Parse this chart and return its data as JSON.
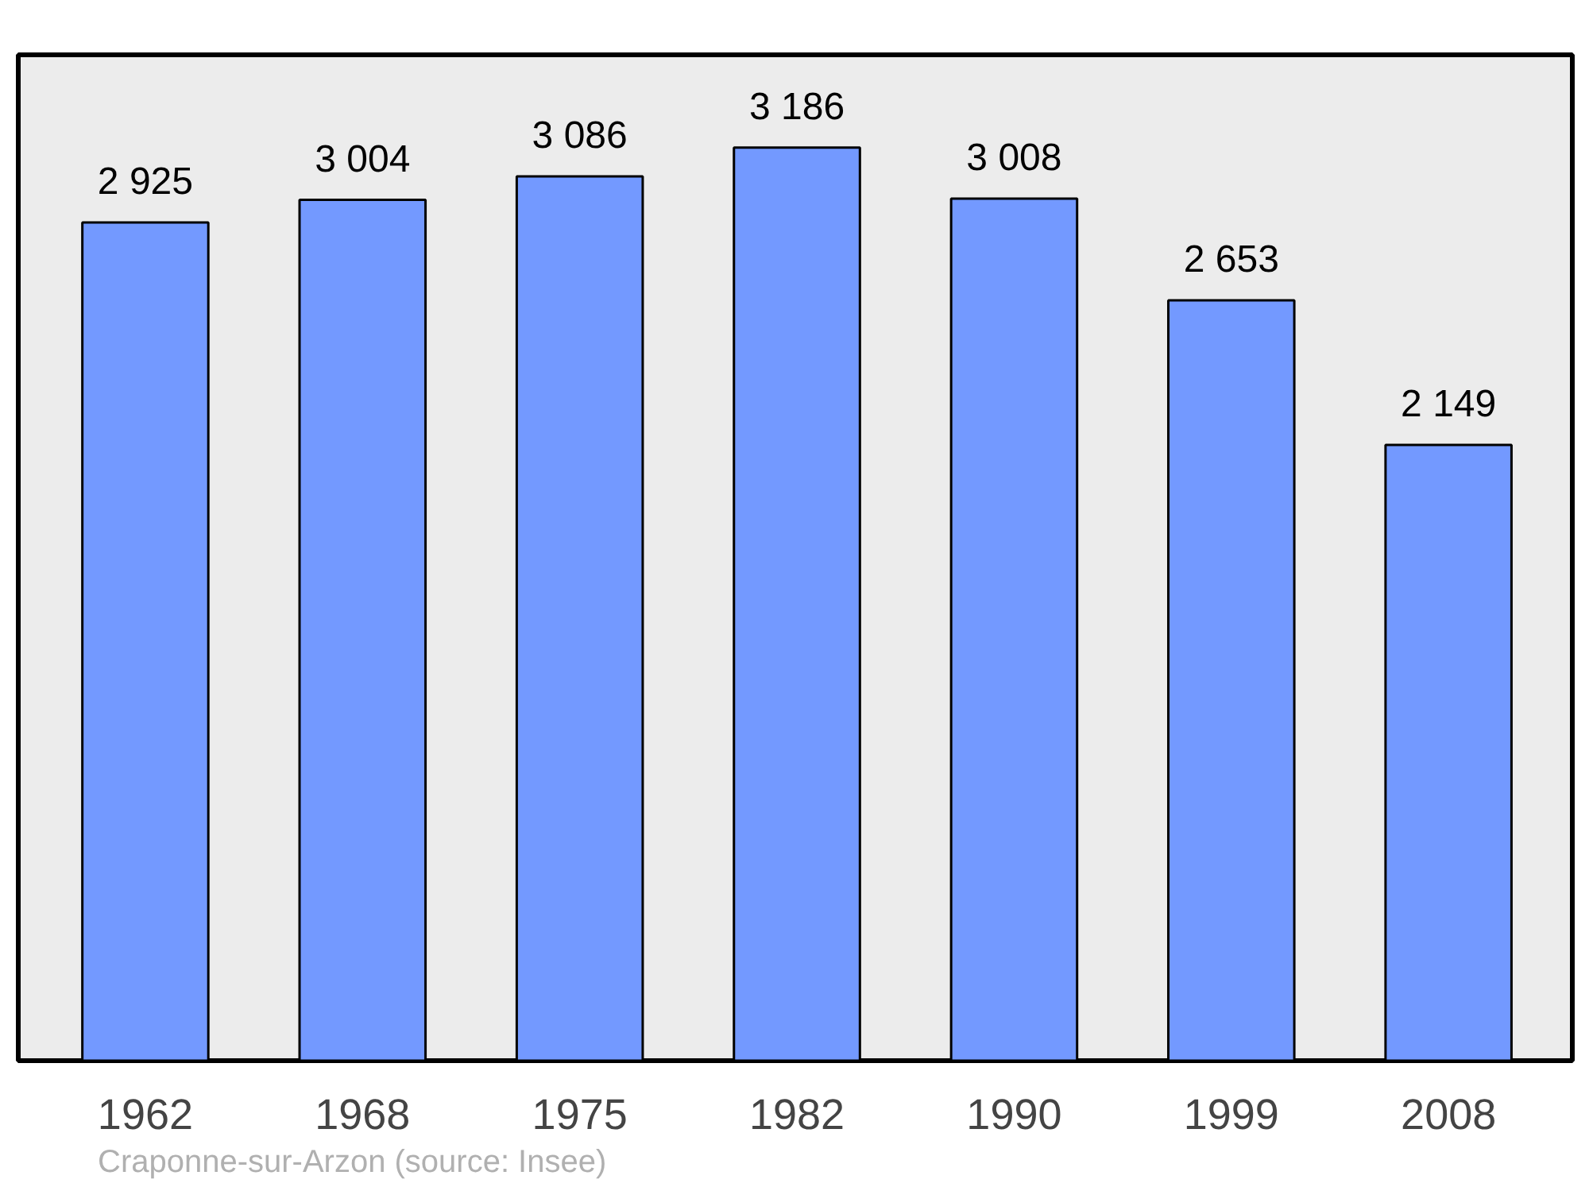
{
  "chart_data": {
    "type": "bar",
    "categories": [
      "1962",
      "1968",
      "1975",
      "1982",
      "1990",
      "1999",
      "2008"
    ],
    "values": [
      2925,
      3004,
      3086,
      3186,
      3008,
      2653,
      2149
    ],
    "value_labels": [
      "2 925",
      "3 004",
      "3 086",
      "3 186",
      "3 008",
      "2 653",
      "2 149"
    ],
    "color": "#7399ff",
    "ylim": [
      0,
      3510
    ],
    "tick_labels": "x",
    "grid": false,
    "annotations": [
      "Craponne-sur-Arzon    (source: Insee)"
    ]
  }
}
